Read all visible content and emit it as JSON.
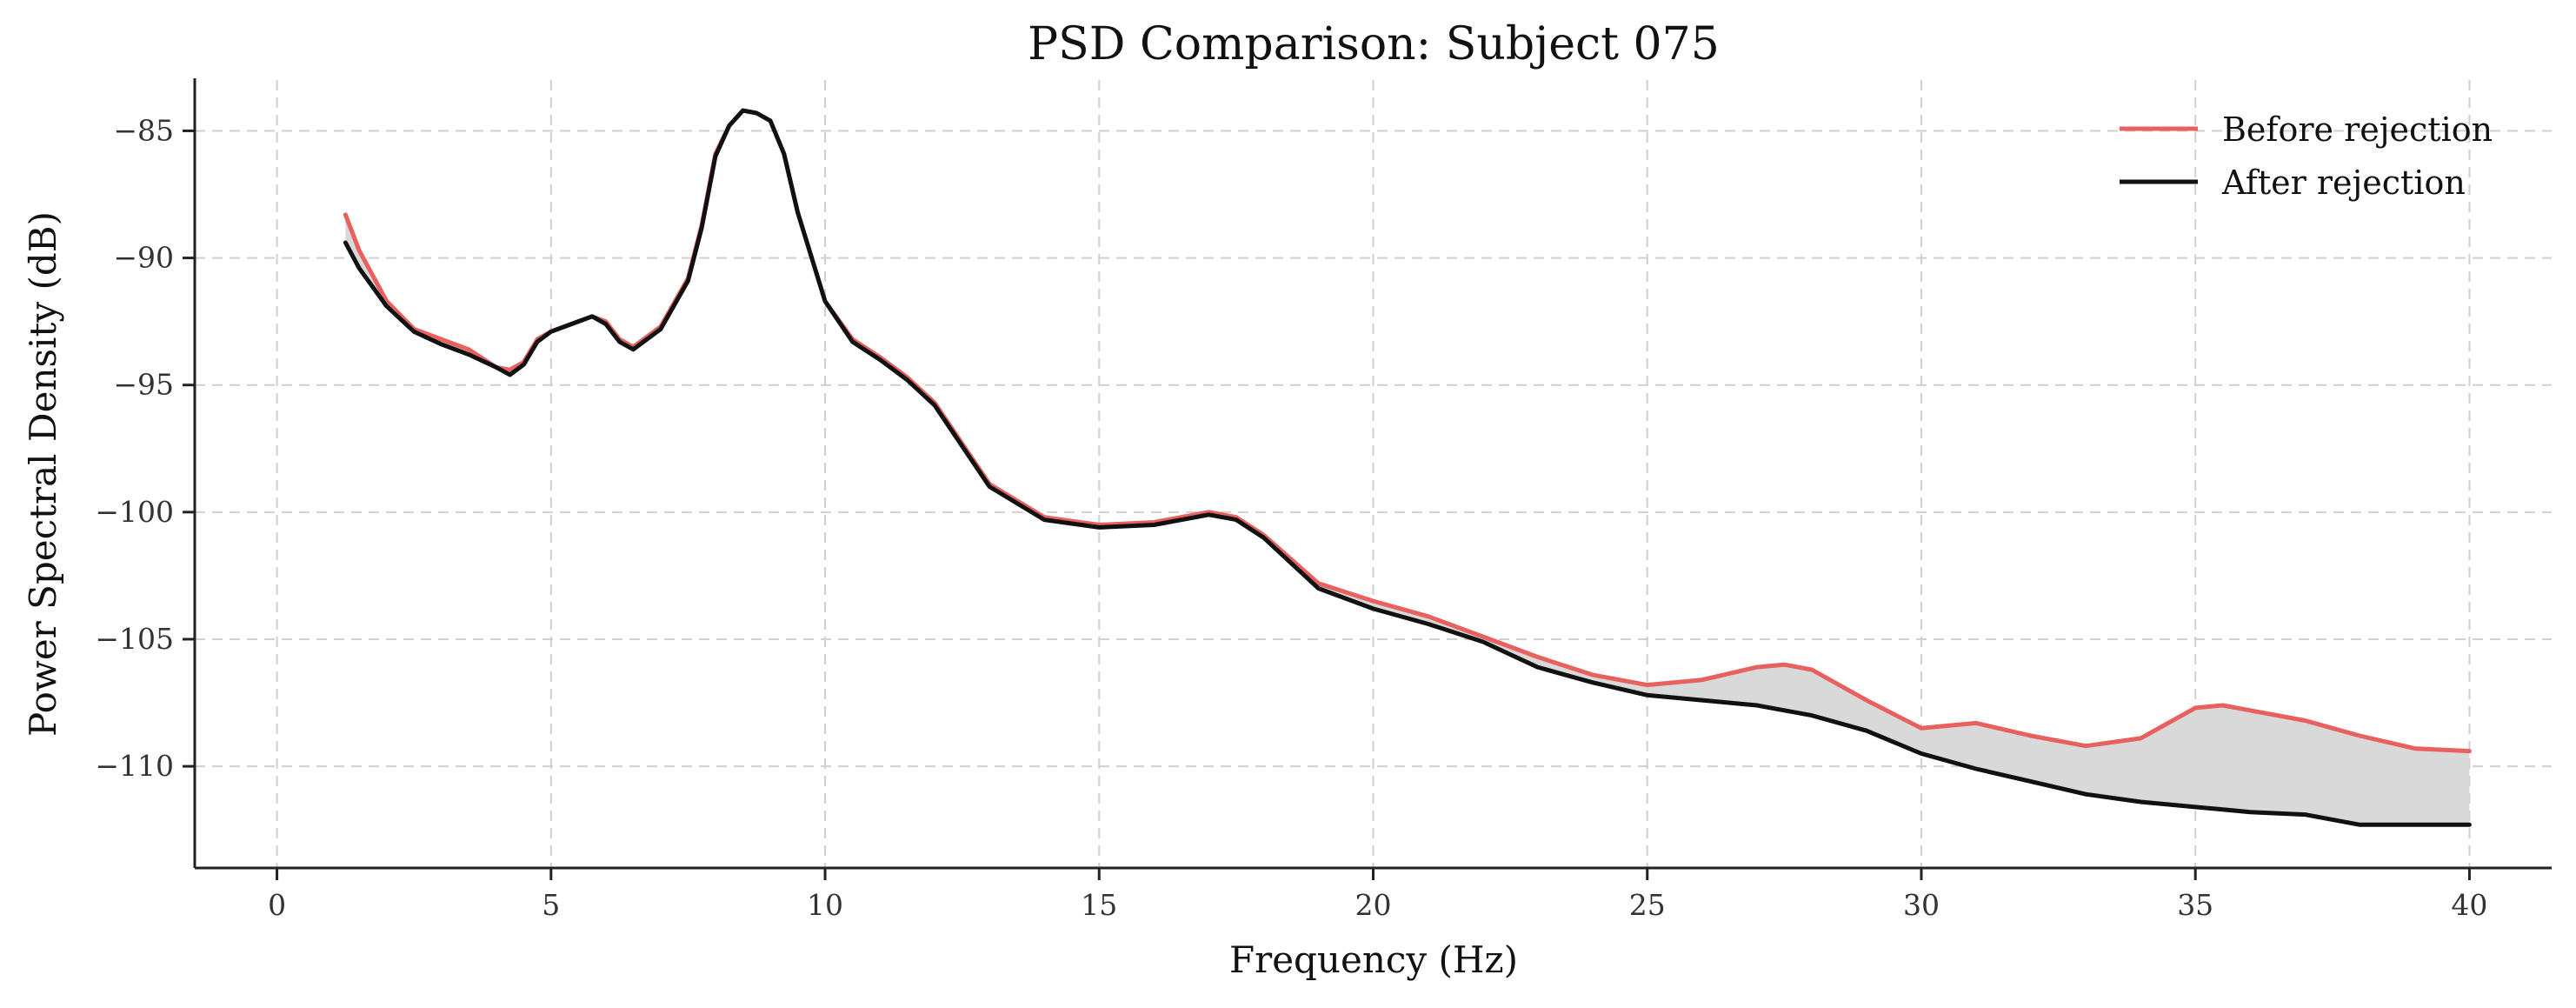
{
  "chart_data": {
    "type": "line",
    "title": "PSD Comparison: Subject 075",
    "xlabel": "Frequency (Hz)",
    "ylabel": "Power Spectral Density (dB)",
    "xlim": [
      -1.5,
      41.5
    ],
    "ylim": [
      -114,
      -83
    ],
    "xticks": [
      0,
      5,
      10,
      15,
      20,
      25,
      30,
      35,
      40
    ],
    "yticks": [
      -85,
      -90,
      -95,
      -100,
      -105,
      -110
    ],
    "grid": true,
    "legend_position": "top-right",
    "fill_between": true,
    "colors": {
      "before": "#e8615f",
      "after": "#111111",
      "fill": "#d9d9d9",
      "grid": "#d0d0d0"
    },
    "x": [
      1.25,
      1.5,
      2,
      2.5,
      3,
      3.5,
      4,
      4.25,
      4.5,
      4.75,
      5,
      5.5,
      5.75,
      6,
      6.25,
      6.5,
      7,
      7.5,
      7.75,
      8,
      8.25,
      8.5,
      8.75,
      9,
      9.25,
      9.5,
      10,
      10.5,
      11,
      11.5,
      12,
      13,
      14,
      15,
      16,
      17,
      17.5,
      18,
      19,
      20,
      21,
      22,
      23,
      24,
      25,
      26,
      27,
      27.5,
      28,
      29,
      30,
      31,
      32,
      33,
      34,
      35,
      35.5,
      36,
      37,
      38,
      39,
      40
    ],
    "series": [
      {
        "name": "Before rejection",
        "values": [
          -88.3,
          -89.7,
          -91.7,
          -92.8,
          -93.2,
          -93.6,
          -94.3,
          -94.4,
          -94.1,
          -93.2,
          -92.9,
          -92.5,
          -92.3,
          -92.5,
          -93.2,
          -93.5,
          -92.7,
          -90.8,
          -88.7,
          -85.9,
          -84.8,
          -84.2,
          -84.3,
          -84.6,
          -85.9,
          -88.2,
          -91.7,
          -93.2,
          -93.9,
          -94.7,
          -95.7,
          -98.9,
          -100.2,
          -100.5,
          -100.4,
          -100.0,
          -100.2,
          -100.9,
          -102.8,
          -103.5,
          -104.1,
          -104.9,
          -105.7,
          -106.4,
          -106.8,
          -106.6,
          -106.1,
          -106.0,
          -106.2,
          -107.4,
          -108.5,
          -108.3,
          -108.8,
          -109.2,
          -108.9,
          -107.7,
          -107.6,
          -107.8,
          -108.2,
          -108.8,
          -109.3,
          -109.4
        ]
      },
      {
        "name": "After rejection",
        "values": [
          -89.4,
          -90.4,
          -91.9,
          -92.9,
          -93.4,
          -93.8,
          -94.3,
          -94.6,
          -94.2,
          -93.3,
          -92.9,
          -92.5,
          -92.3,
          -92.6,
          -93.3,
          -93.6,
          -92.8,
          -90.9,
          -88.8,
          -86.0,
          -84.8,
          -84.2,
          -84.3,
          -84.6,
          -85.9,
          -88.2,
          -91.7,
          -93.3,
          -94.0,
          -94.8,
          -95.8,
          -99.0,
          -100.3,
          -100.6,
          -100.5,
          -100.1,
          -100.3,
          -101.0,
          -103.0,
          -103.8,
          -104.4,
          -105.1,
          -106.1,
          -106.7,
          -107.2,
          -107.4,
          -107.6,
          -107.8,
          -108.0,
          -108.6,
          -109.5,
          -110.1,
          -110.6,
          -111.1,
          -111.4,
          -111.6,
          -111.7,
          -111.8,
          -111.9,
          -112.3,
          -112.3,
          -112.3
        ]
      }
    ]
  }
}
